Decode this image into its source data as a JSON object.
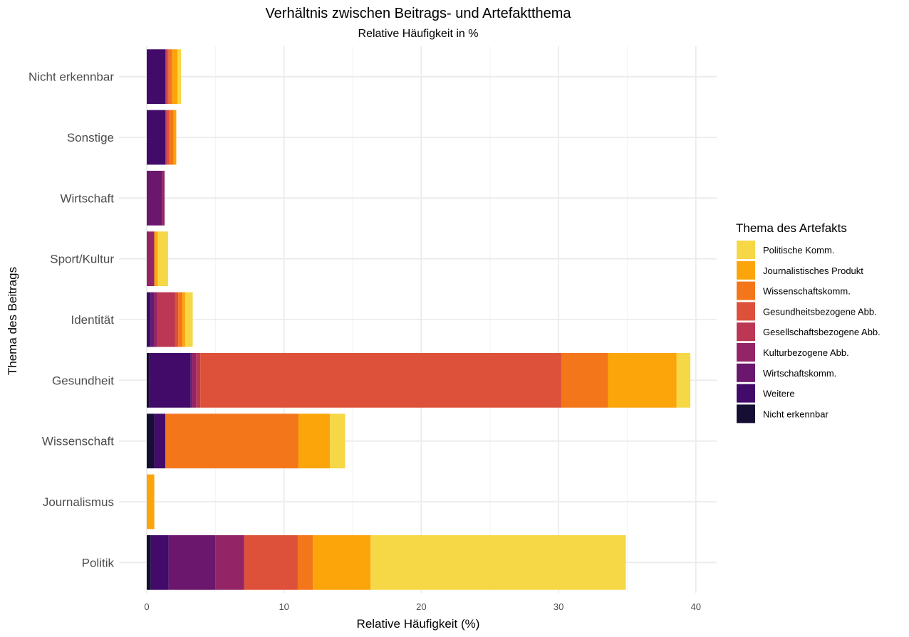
{
  "chart_data": {
    "type": "bar",
    "orientation": "horizontal",
    "stacked": true,
    "title": "Verhältnis zwischen Beitrags- und Artefaktthema",
    "subtitle": "Relative Häufigkeit in %",
    "xlabel": "Relative Häufigkeit (%)",
    "ylabel": "Thema des Beitrags",
    "xlim": [
      0,
      41
    ],
    "xticks": [
      0,
      10,
      20,
      30,
      40
    ],
    "grid": true,
    "legend": {
      "title": "Thema des Artefakts",
      "position": "right"
    },
    "categories": [
      "Nicht erkennbar",
      "Sonstige",
      "Wirtschaft",
      "Sport/Kultur",
      "Identität",
      "Gesundheit",
      "Wissenschaft",
      "Journalismus",
      "Politik"
    ],
    "series": [
      {
        "name": "Nicht erkennbar",
        "color": "#160f33",
        "values": [
          0,
          0,
          0,
          0,
          0,
          0.2,
          0.55,
          0,
          0.3
        ]
      },
      {
        "name": "Weitere",
        "color": "#420b6a",
        "values": [
          1.35,
          1.35,
          0,
          0,
          0.3,
          3.0,
          0.8,
          0,
          1.3
        ]
      },
      {
        "name": "Wirtschaftskomm.",
        "color": "#6b176e",
        "values": [
          0,
          0,
          1.1,
          0,
          0.25,
          0.1,
          0,
          0,
          3.4
        ]
      },
      {
        "name": "Kulturbezogene Abb.",
        "color": "#932567",
        "values": [
          0,
          0,
          0.2,
          0.55,
          0.2,
          0.3,
          0,
          0,
          2.1
        ]
      },
      {
        "name": "Gesellschaftsbezogene Abb.",
        "color": "#bb3754",
        "values": [
          0.1,
          0.1,
          0,
          0,
          1.3,
          0.3,
          0,
          0,
          0
        ]
      },
      {
        "name": "Gesundheitsbezogene Abb.",
        "color": "#dd513a",
        "values": [
          0.15,
          0.2,
          0,
          0,
          0.25,
          26.3,
          0,
          0,
          3.9
        ]
      },
      {
        "name": "Wissenschaftskomm.",
        "color": "#f3761b",
        "values": [
          0.25,
          0.3,
          0,
          0,
          0.3,
          3.4,
          9.7,
          0,
          1.1
        ]
      },
      {
        "name": "Journalistisches Produkt",
        "color": "#fca50a",
        "values": [
          0.4,
          0.2,
          0,
          0.25,
          0.2,
          5.0,
          2.3,
          0.55,
          4.2
        ]
      },
      {
        "name": "Politische Komm.",
        "color": "#f6d746",
        "values": [
          0.25,
          0,
          0,
          0.75,
          0.55,
          1.0,
          1.1,
          0,
          18.6
        ]
      }
    ],
    "legend_order": [
      "Politische Komm.",
      "Journalistisches Produkt",
      "Wissenschaftskomm.",
      "Gesundheitsbezogene Abb.",
      "Gesellschaftsbezogene Abb.",
      "Kulturbezogene Abb.",
      "Wirtschaftskomm.",
      "Weitere",
      "Nicht erkennbar"
    ]
  }
}
